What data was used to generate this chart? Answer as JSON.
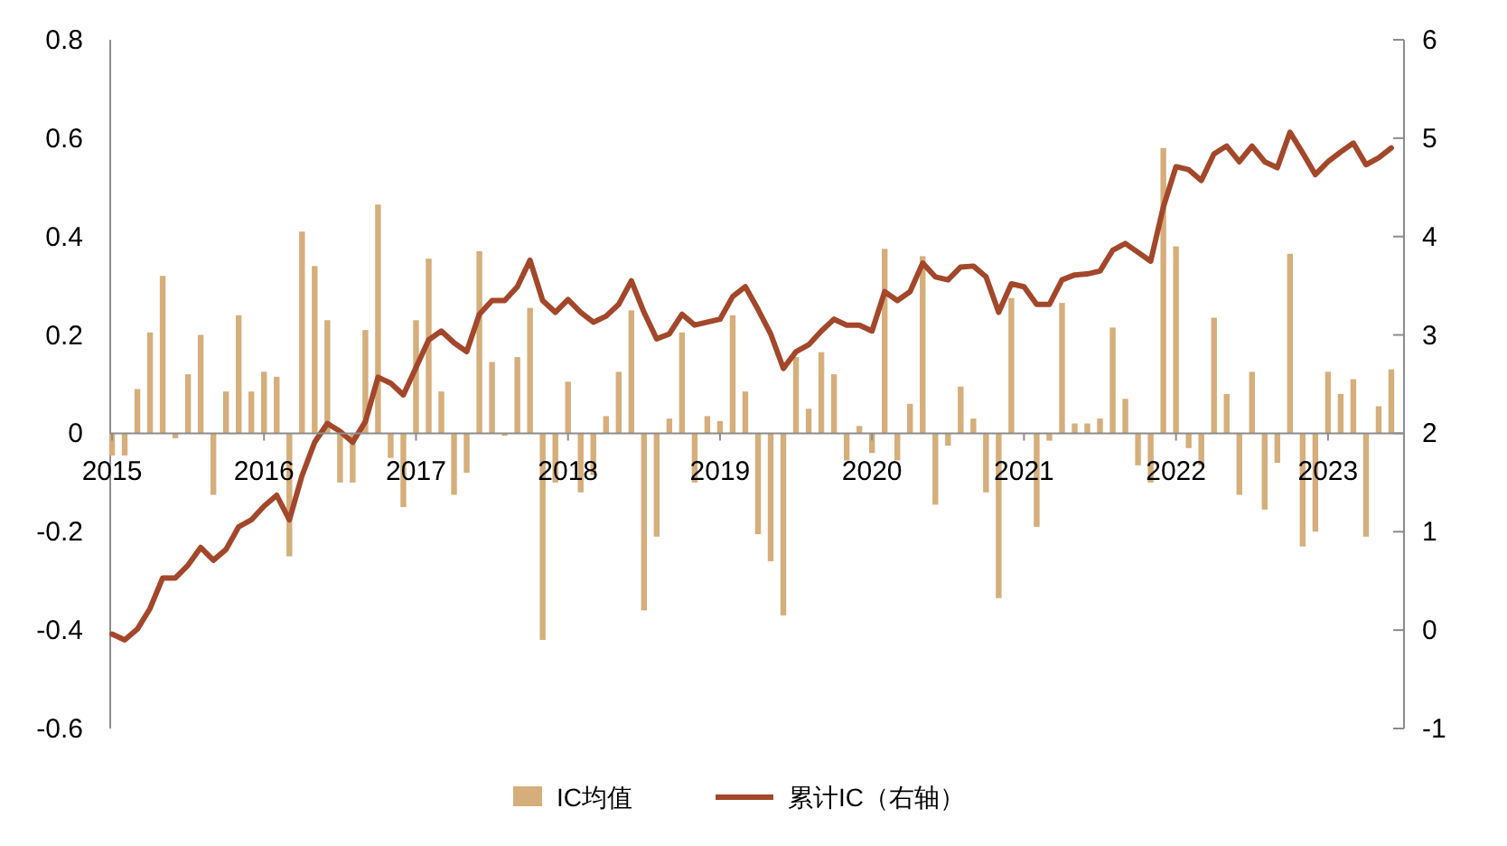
{
  "chart_data": {
    "type": "bar",
    "categories": [
      "2015",
      null,
      null,
      null,
      null,
      null,
      null,
      null,
      null,
      null,
      null,
      null,
      "2016",
      null,
      null,
      null,
      null,
      null,
      null,
      null,
      null,
      null,
      null,
      null,
      "2017",
      null,
      null,
      null,
      null,
      null,
      null,
      null,
      null,
      null,
      null,
      null,
      "2018",
      null,
      null,
      null,
      null,
      null,
      null,
      null,
      null,
      null,
      null,
      null,
      "2019",
      null,
      null,
      null,
      null,
      null,
      null,
      null,
      null,
      null,
      null,
      null,
      "2020",
      null,
      null,
      null,
      null,
      null,
      null,
      null,
      null,
      null,
      null,
      null,
      "2021",
      null,
      null,
      null,
      null,
      null,
      null,
      null,
      null,
      null,
      null,
      null,
      "2022",
      null,
      null,
      null,
      null,
      null,
      null,
      null,
      null,
      null,
      null,
      null,
      "2023",
      null,
      null,
      null,
      null,
      null
    ],
    "series": [
      {
        "name": "IC均值",
        "color": "#d5ae7b",
        "values": [
          -0.045,
          -0.045,
          0.09,
          0.205,
          0.32,
          -0.01,
          0.12,
          0.2,
          -0.125,
          0.085,
          0.24,
          0.085,
          0.125,
          0.115,
          -0.25,
          0.41,
          0.34,
          0.23,
          -0.1,
          -0.1,
          0.21,
          0.465,
          -0.05,
          -0.15,
          0.23,
          0.355,
          0.085,
          -0.125,
          -0.08,
          0.37,
          0.145,
          -0.005,
          0.155,
          0.255,
          -0.42,
          -0.1,
          0.105,
          -0.12,
          -0.085,
          0.035,
          0.125,
          0.25,
          -0.36,
          -0.21,
          0.03,
          0.205,
          -0.1,
          0.035,
          0.025,
          0.24,
          0.085,
          -0.205,
          -0.26,
          -0.37,
          0.155,
          0.05,
          0.165,
          0.12,
          -0.055,
          0.015,
          -0.04,
          0.375,
          -0.055,
          0.06,
          0.36,
          -0.145,
          -0.025,
          0.095,
          0.03,
          -0.12,
          -0.335,
          0.275,
          0,
          -0.19,
          -0.015,
          0.265,
          0.02,
          0.02,
          0.03,
          0.215,
          0.07,
          -0.065,
          -0.1,
          0.58,
          0.38,
          -0.03,
          -0.065,
          0.235,
          0.08,
          -0.125,
          0.125,
          -0.155,
          -0.06,
          0.365,
          -0.23,
          -0.2,
          0.125,
          0.08,
          0.11,
          -0.21,
          0.055,
          0.13
        ]
      },
      {
        "name": "累计IC（右轴）",
        "type": "line",
        "axis": "y2",
        "color": "#a3472b",
        "values": [
          -0.04,
          -0.1,
          0.01,
          0.22,
          0.53,
          0.53,
          0.66,
          0.84,
          0.71,
          0.82,
          1.05,
          1.12,
          1.26,
          1.37,
          1.12,
          1.57,
          1.91,
          2.1,
          2.02,
          1.91,
          2.12,
          2.57,
          2.51,
          2.39,
          2.67,
          2.95,
          3.04,
          2.92,
          2.83,
          3.21,
          3.35,
          3.35,
          3.49,
          3.76,
          3.35,
          3.23,
          3.36,
          3.23,
          3.13,
          3.19,
          3.31,
          3.55,
          3.23,
          2.96,
          3.01,
          3.21,
          3.1,
          3.13,
          3.16,
          3.39,
          3.49,
          3.26,
          3.01,
          2.66,
          2.83,
          2.9,
          3.04,
          3.16,
          3.1,
          3.1,
          3.04,
          3.44,
          3.35,
          3.44,
          3.73,
          3.59,
          3.56,
          3.69,
          3.7,
          3.59,
          3.23,
          3.52,
          3.49,
          3.31,
          3.31,
          3.56,
          3.61,
          3.62,
          3.65,
          3.86,
          3.93,
          3.84,
          3.75,
          4.3,
          4.71,
          4.68,
          4.57,
          4.84,
          4.92,
          4.76,
          4.92,
          4.76,
          4.7,
          5.06,
          4.85,
          4.63,
          4.76,
          4.86,
          4.95,
          4.73,
          4.8,
          4.9
        ]
      }
    ],
    "ylim": [
      -0.6,
      0.8
    ],
    "yticks": [
      -0.6,
      -0.4,
      -0.2,
      0,
      0.2,
      0.4,
      0.6,
      0.8
    ],
    "y2lim": [
      -1,
      6
    ],
    "y2ticks": [
      -1,
      0,
      1,
      2,
      3,
      4,
      5,
      6
    ],
    "legend": "bottom"
  }
}
